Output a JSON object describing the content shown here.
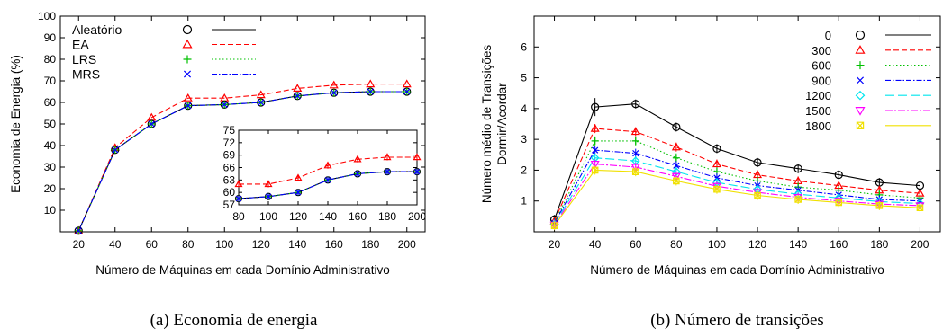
{
  "chart_data": [
    {
      "type": "line",
      "caption": "(a)  Economia de energia",
      "xlabel": "Número de Máquinas em cada Domínio Administrativo",
      "ylabel": "Economia de Energia (%)",
      "x": [
        20,
        40,
        60,
        80,
        100,
        120,
        140,
        160,
        180,
        200
      ],
      "xlim": [
        10,
        210
      ],
      "ylim": [
        0,
        100
      ],
      "yticks": [
        10,
        20,
        30,
        40,
        50,
        60,
        70,
        80,
        90,
        100
      ],
      "legend_position": "top-left",
      "series": [
        {
          "name": "Aleatório",
          "color": "#000000",
          "marker": "circle",
          "dash": "solid",
          "values": [
            0.5,
            38,
            50,
            58.5,
            59,
            60,
            63,
            64.5,
            65,
            65
          ]
        },
        {
          "name": "EA",
          "color": "#ff0000",
          "marker": "triangle",
          "dash": "dashed",
          "values": [
            0.5,
            39,
            53,
            62,
            62,
            63.5,
            66.5,
            68,
            68.5,
            68.5
          ]
        },
        {
          "name": "LRS",
          "color": "#00c000",
          "marker": "plus",
          "dash": "dotted",
          "values": [
            0.5,
            38,
            50,
            58.5,
            59,
            60,
            63,
            64.5,
            65,
            65
          ]
        },
        {
          "name": "MRS",
          "color": "#0000ff",
          "marker": "cross",
          "dash": "dashdot",
          "values": [
            0.5,
            38,
            50,
            58.5,
            59,
            60,
            63,
            64.5,
            65,
            65
          ]
        }
      ],
      "inset": {
        "xlim": [
          80,
          200
        ],
        "ylim": [
          57,
          75
        ],
        "xticks": [
          80,
          100,
          120,
          140,
          160,
          180,
          200
        ],
        "yticks": [
          57,
          60,
          63,
          66,
          69,
          72,
          75
        ],
        "x": [
          80,
          100,
          120,
          140,
          160,
          180,
          200
        ],
        "series_values": [
          [
            58.5,
            59,
            60,
            63,
            64.5,
            65,
            65
          ],
          [
            62,
            62,
            63.5,
            66.5,
            68,
            68.5,
            68.5
          ],
          [
            58.5,
            59,
            60,
            63,
            64.5,
            65,
            65
          ],
          [
            58.5,
            59,
            60,
            63,
            64.5,
            65,
            65
          ]
        ]
      }
    },
    {
      "type": "line",
      "caption": "(b)  Número de transições",
      "xlabel": "Número de Máquinas em cada Domínio Administrativo",
      "ylabel_lines": [
        "Número médio de Transições",
        "Dormir/Acordar"
      ],
      "x": [
        20,
        40,
        60,
        80,
        100,
        120,
        140,
        160,
        180,
        200
      ],
      "xlim": [
        10,
        210
      ],
      "ylim": [
        0,
        7
      ],
      "yticks": [
        1,
        2,
        3,
        4,
        5,
        6
      ],
      "legend_position": "top-right",
      "series": [
        {
          "name": "0",
          "color": "#000000",
          "marker": "circle",
          "dash": "solid",
          "values": [
            0.4,
            4.05,
            4.15,
            3.4,
            2.7,
            2.25,
            2.05,
            1.85,
            1.6,
            1.5
          ]
        },
        {
          "name": "300",
          "color": "#ff0000",
          "marker": "triangle",
          "dash": "dashed",
          "values": [
            0.35,
            3.35,
            3.25,
            2.75,
            2.2,
            1.85,
            1.65,
            1.5,
            1.35,
            1.25
          ]
        },
        {
          "name": "600",
          "color": "#00c000",
          "marker": "plus",
          "dash": "dotted",
          "values": [
            0.3,
            2.95,
            2.95,
            2.4,
            1.95,
            1.65,
            1.45,
            1.35,
            1.2,
            1.1
          ]
        },
        {
          "name": "900",
          "color": "#0000ff",
          "marker": "cross",
          "dash": "dashdot",
          "values": [
            0.28,
            2.65,
            2.55,
            2.15,
            1.75,
            1.5,
            1.35,
            1.2,
            1.05,
            1.0
          ]
        },
        {
          "name": "1200",
          "color": "#00e5ee",
          "marker": "diamond",
          "dash": "longdash",
          "values": [
            0.25,
            2.4,
            2.3,
            1.95,
            1.6,
            1.38,
            1.22,
            1.1,
            0.98,
            0.92
          ]
        },
        {
          "name": "1500",
          "color": "#ff00ff",
          "marker": "invtriangle",
          "dash": "dashdot2",
          "values": [
            0.22,
            2.2,
            2.1,
            1.8,
            1.48,
            1.28,
            1.12,
            1.0,
            0.9,
            0.85
          ]
        },
        {
          "name": "1800",
          "color": "#f0e000",
          "marker": "boxx",
          "dash": "solid",
          "values": [
            0.2,
            2.0,
            1.95,
            1.65,
            1.38,
            1.18,
            1.05,
            0.95,
            0.85,
            0.78
          ]
        }
      ]
    }
  ]
}
